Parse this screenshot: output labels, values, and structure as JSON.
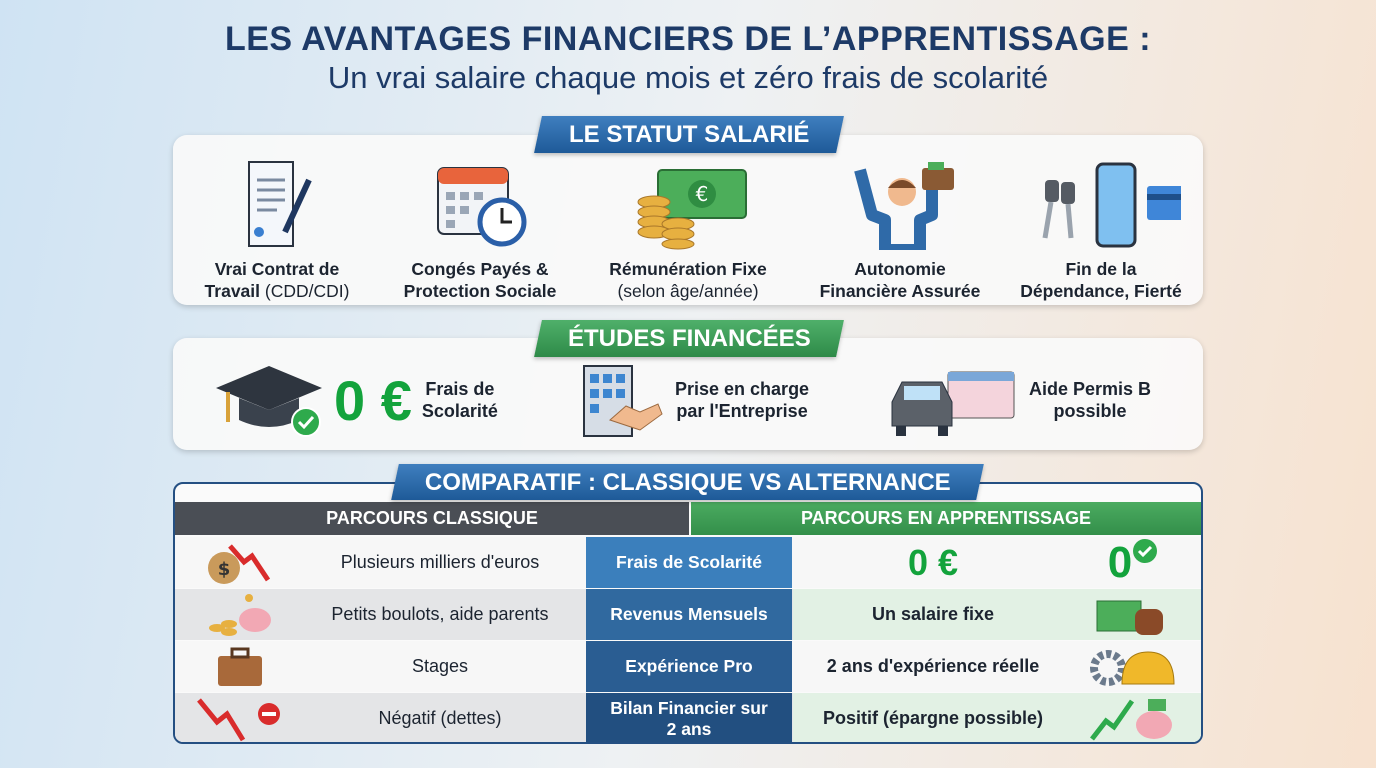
{
  "title": "LES AVANTAGES FINANCIERS DE L’APPRENTISSAGE :",
  "subtitle": "Un vrai salaire chaque mois et zéro frais de scolarité",
  "statut": {
    "heading": "LE STATUT SALARIÉ",
    "items": [
      {
        "icon": "contract-icon",
        "line1": "Vrai Contrat de",
        "line2a": "Travail",
        "line2b": " (CDD/CDI)"
      },
      {
        "icon": "calendar-clock-icon",
        "line1": "Congés Payés &",
        "line2a": "Protection Sociale",
        "line2b": ""
      },
      {
        "icon": "money-coins-icon",
        "line1": "Rémunération Fixe",
        "line2a": "",
        "line2b": "(selon âge/année)"
      },
      {
        "icon": "person-wallet-icon",
        "line1": "Autonomie",
        "line2a": "Financière Assurée",
        "line2b": ""
      },
      {
        "icon": "keys-phone-card-icon",
        "line1": "Fin de la",
        "line2a": "Dépendance, Fierté",
        "line2b": ""
      }
    ]
  },
  "etudes": {
    "heading": "ÉTUDES FINANCÉES",
    "zero": "0 €",
    "items": [
      {
        "icon": "graduation-cap-icon",
        "text1": "Frais de",
        "text2": "Scolarité"
      },
      {
        "icon": "building-handshake-icon",
        "text1": "Prise en charge",
        "text2": "par l'Entreprise"
      },
      {
        "icon": "car-license-icon",
        "text1": "Aide Permis B",
        "text2": "possible"
      }
    ]
  },
  "comparatif": {
    "heading": "COMPARATIF : CLASSIQUE VS ALTERNANCE",
    "left_header": "PARCOURS CLASSIQUE",
    "right_header": "PARCOURS EN APPRENTISSAGE",
    "rows": [
      {
        "criterion": "Frais de Scolarité",
        "classique": "Plusieurs milliers d'euros",
        "apprentissage": "0 €",
        "extra": "0"
      },
      {
        "criterion": "Revenus Mensuels",
        "classique": "Petits boulots, aide parents",
        "apprentissage": "Un salaire fixe"
      },
      {
        "criterion": "Expérience Pro",
        "classique": "Stages",
        "apprentissage": "2 ans d'expérience réelle"
      },
      {
        "criterion": "Bilan Financier sur 2 ans",
        "classique": "Négatif (dettes)",
        "apprentissage": "Positif (épargne possible)"
      }
    ]
  },
  "colors": {
    "navy": "#1d3a67",
    "blue": "#2a6aa8",
    "green": "#2e9a4c",
    "zero_green": "#13a33c",
    "classic_grey": "#4a4e55"
  }
}
